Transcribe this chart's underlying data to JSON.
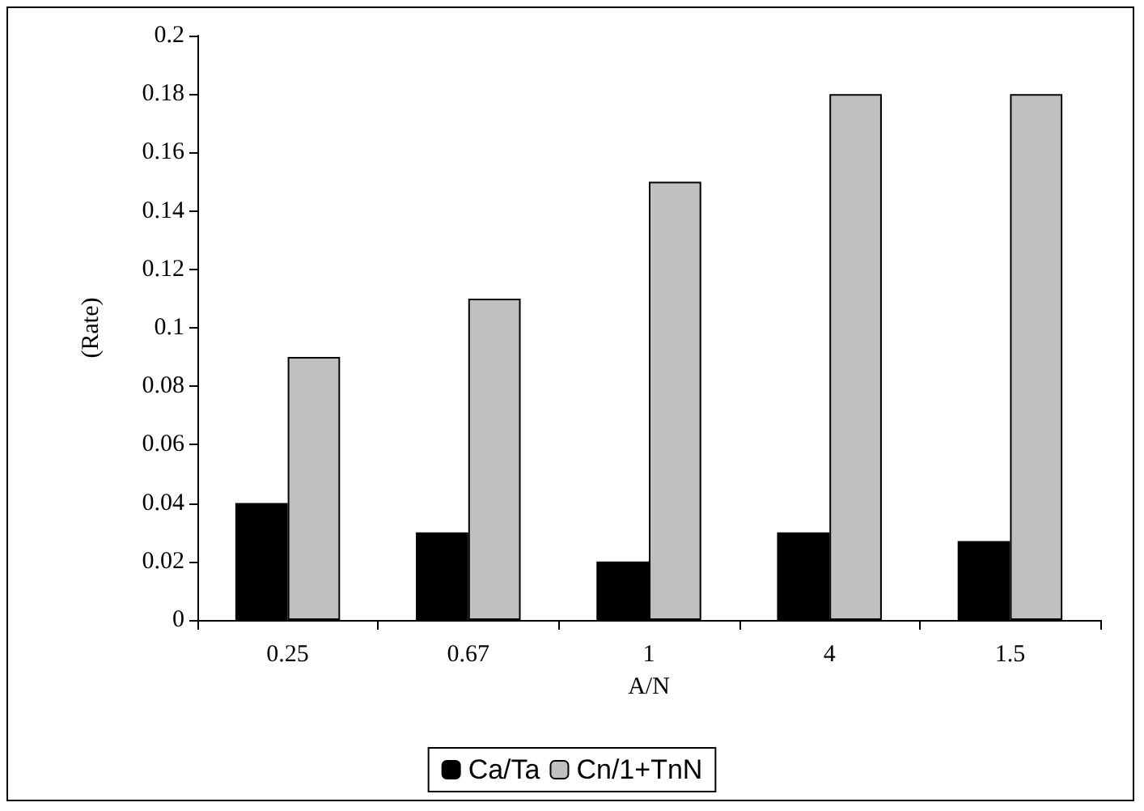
{
  "chart_data": {
    "type": "bar",
    "xlabel": "A/N",
    "ylabel": "(Rate)",
    "categories": [
      "0.25",
      "0.67",
      "1",
      "4",
      "1.5"
    ],
    "series": [
      {
        "name": "Ca/Ta",
        "color": "#000000",
        "values": [
          0.04,
          0.03,
          0.02,
          0.03,
          0.027
        ]
      },
      {
        "name": "Cn/1+TnN",
        "color": "#c0c0c0",
        "values": [
          0.09,
          0.11,
          0.15,
          0.18,
          0.18
        ]
      }
    ],
    "ylim": [
      0,
      0.2
    ],
    "yticks": [
      0,
      0.02,
      0.04,
      0.06,
      0.08,
      0.1,
      0.12,
      0.14,
      0.16,
      0.18,
      0.2
    ],
    "grid": false,
    "legend": "bottom"
  }
}
